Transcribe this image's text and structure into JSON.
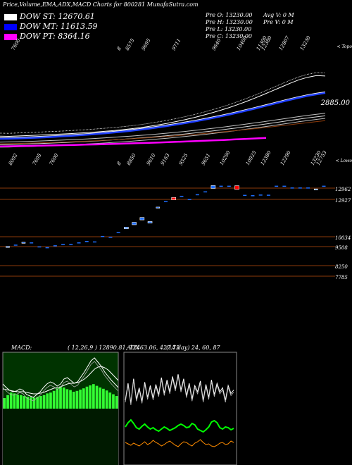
{
  "header": {
    "title": "Price,Volume,EMA,ADX,MACD Charts for 800281 MunafaSutra.com"
  },
  "legend": [
    {
      "label": "DOW ST: 12670.61",
      "color": "#ffffff"
    },
    {
      "label": "DOW MT: 11613.59",
      "color": "#0000ff"
    },
    {
      "label": "DOW PT: 8364.16",
      "color": "#ff00ff"
    }
  ],
  "ohlc_info": {
    "open": "Pre   O: 13230.00",
    "high": "Pre   H: 13230.00",
    "low": "Pre   L: 13230.00",
    "close": "Pre   C: 13230.00",
    "avg_vol": "Avg V: 0  M",
    "pre_vol": "Pre   V: 0  M"
  },
  "chart_data": [
    {
      "type": "line",
      "panel": "price-ema",
      "right_label": "2885.00",
      "corner_label": "< Topo",
      "top_labels": [
        "7600",
        "8",
        "8575",
        "9695",
        "9711",
        "9640",
        "10400",
        "11300",
        "12380",
        "12807",
        "13230"
      ],
      "series": [
        {
          "color": "#ffffff",
          "values": [
            2180,
            2178,
            2182,
            2186,
            2190,
            2195,
            2200,
            2204,
            2210,
            2216,
            2222,
            2230,
            2238,
            2246,
            2256,
            2268,
            2280,
            2296,
            2312,
            2330,
            2350,
            2372,
            2396,
            2422,
            2450,
            2480,
            2512,
            2548,
            2586,
            2626,
            2668,
            2712,
            2756,
            2800,
            2840,
            2870,
            2890,
            2885
          ]
        },
        {
          "color": "#1f3fff",
          "values": [
            2150,
            2152,
            2155,
            2159,
            2163,
            2168,
            2173,
            2179,
            2185,
            2192,
            2199,
            2207,
            2216,
            2225,
            2235,
            2246,
            2258,
            2271,
            2285,
            2300,
            2316,
            2333,
            2351,
            2370,
            2390,
            2411,
            2433,
            2456,
            2480,
            2505,
            2531,
            2557,
            2583,
            2608,
            2632,
            2654,
            2672,
            2688
          ]
        },
        {
          "color": "#c0c0c0",
          "values": [
            2110,
            2112,
            2115,
            2118,
            2121,
            2125,
            2129,
            2133,
            2138,
            2143,
            2148,
            2154,
            2160,
            2167,
            2174,
            2181,
            2189,
            2197,
            2206,
            2215,
            2225,
            2235,
            2246,
            2257,
            2269,
            2281,
            2294,
            2307,
            2321,
            2335,
            2349,
            2364,
            2379,
            2394,
            2409,
            2423,
            2436,
            2448
          ]
        },
        {
          "color": "#ff00ff",
          "values": [
            2060,
            2062,
            2064,
            2066,
            2069,
            2071,
            2074,
            2077,
            2080,
            2083,
            2087,
            2090,
            2094,
            2098,
            2102,
            2106,
            2111,
            2115,
            2120,
            2125,
            2130,
            2135,
            2141,
            2147,
            2153,
            2159
          ]
        },
        {
          "color": "#8b3a0a",
          "values": [
            2090,
            2092,
            2094,
            2097,
            2100,
            2103,
            2106,
            2110,
            2114,
            2118,
            2122,
            2127,
            2132,
            2137,
            2143,
            2149,
            2155,
            2162,
            2169,
            2176,
            2184,
            2192,
            2200,
            2209,
            2218,
            2227,
            2237,
            2247,
            2257,
            2268,
            2279,
            2290,
            2302,
            2314,
            2326,
            2338,
            2350,
            2362
          ]
        }
      ]
    },
    {
      "type": "candlestick",
      "panel": "price",
      "corner_label": "< Lowo",
      "top_labels": [
        "8002",
        "7605",
        "7600",
        "8",
        "8850",
        "9610",
        "9163",
        "9525",
        "9651",
        "10290",
        "10925",
        "12380",
        "12290",
        "13230",
        "12753"
      ],
      "levels": [
        "12962",
        "12927",
        "10034",
        "9508",
        "8250",
        "7785"
      ],
      "candles": [
        {
          "x": 1,
          "o": 9400,
          "c": 9450,
          "dir": "up"
        },
        {
          "x": 2,
          "o": 9560,
          "c": 9560,
          "dir": "flat"
        },
        {
          "x": 3,
          "o": 9690,
          "c": 9710,
          "dir": "up"
        },
        {
          "x": 4,
          "o": 9700,
          "c": 9700,
          "dir": "flat"
        },
        {
          "x": 5,
          "o": 9450,
          "c": 9450,
          "dir": "flat"
        },
        {
          "x": 6,
          "o": 9400,
          "c": 9400,
          "dir": "flat"
        },
        {
          "x": 7,
          "o": 9520,
          "c": 9520,
          "dir": "flat"
        },
        {
          "x": 8,
          "o": 9600,
          "c": 9600,
          "dir": "flat"
        },
        {
          "x": 9,
          "o": 9600,
          "c": 9600,
          "dir": "flat"
        },
        {
          "x": 10,
          "o": 9700,
          "c": 9700,
          "dir": "flat"
        },
        {
          "x": 11,
          "o": 9790,
          "c": 9790,
          "dir": "flat"
        },
        {
          "x": 12,
          "o": 9750,
          "c": 9760,
          "dir": "flat"
        },
        {
          "x": 13,
          "o": 10100,
          "c": 10100,
          "dir": "flat"
        },
        {
          "x": 14,
          "o": 10050,
          "c": 10050,
          "dir": "flat"
        },
        {
          "x": 15,
          "o": 10350,
          "c": 10350,
          "dir": "flat"
        },
        {
          "x": 16,
          "o": 10550,
          "c": 10650,
          "dir": "up"
        },
        {
          "x": 17,
          "o": 10800,
          "c": 10950,
          "dir": "up"
        },
        {
          "x": 18,
          "o": 11100,
          "c": 11250,
          "dir": "up"
        },
        {
          "x": 19,
          "o": 10900,
          "c": 11000,
          "dir": "up"
        },
        {
          "x": 20,
          "o": 11850,
          "c": 11900,
          "dir": "up"
        },
        {
          "x": 21,
          "o": 12280,
          "c": 12280,
          "dir": "flat"
        },
        {
          "x": 22,
          "o": 12500,
          "c": 12350,
          "dir": "down"
        },
        {
          "x": 23,
          "o": 12600,
          "c": 12600,
          "dir": "flat"
        },
        {
          "x": 24,
          "o": 12400,
          "c": 12400,
          "dir": "flat"
        },
        {
          "x": 25,
          "o": 12700,
          "c": 12700,
          "dir": "flat"
        },
        {
          "x": 26,
          "o": 12880,
          "c": 12880,
          "dir": "flat"
        },
        {
          "x": 27,
          "o": 13060,
          "c": 13240,
          "dir": "up"
        },
        {
          "x": 28,
          "o": 13230,
          "c": 13230,
          "dir": "flat"
        },
        {
          "x": 29,
          "o": 13230,
          "c": 13230,
          "dir": "flat"
        },
        {
          "x": 30,
          "o": 13230,
          "c": 13000,
          "dir": "down"
        },
        {
          "x": 31,
          "o": 12660,
          "c": 12660,
          "dir": "flat"
        },
        {
          "x": 32,
          "o": 12640,
          "c": 12640,
          "dir": "flat"
        },
        {
          "x": 33,
          "o": 12680,
          "c": 12680,
          "dir": "flat"
        },
        {
          "x": 34,
          "o": 12670,
          "c": 12670,
          "dir": "flat"
        },
        {
          "x": 35,
          "o": 13230,
          "c": 13230,
          "dir": "flat"
        },
        {
          "x": 36,
          "o": 13230,
          "c": 13230,
          "dir": "flat"
        },
        {
          "x": 37,
          "o": 13120,
          "c": 13120,
          "dir": "flat"
        },
        {
          "x": 38,
          "o": 13120,
          "c": 13120,
          "dir": "flat"
        },
        {
          "x": 39,
          "o": 13120,
          "c": 13120,
          "dir": "flat"
        },
        {
          "x": 40,
          "o": 12980,
          "c": 13030,
          "dir": "up"
        },
        {
          "x": 41,
          "o": 13230,
          "c": 13230,
          "dir": "flat"
        }
      ]
    },
    {
      "type": "macd",
      "panel": "macd",
      "label": "MACD:",
      "params": "( 12,26,9 ) 12890.81, 12463.06, 427.75",
      "histogram": [
        0.25,
        0.32,
        0.38,
        0.36,
        0.33,
        0.32,
        0.3,
        0.28,
        0.27,
        0.26,
        0.28,
        0.3,
        0.32,
        0.36,
        0.38,
        0.42,
        0.48,
        0.52,
        0.5,
        0.46,
        0.44,
        0.4,
        0.42,
        0.45,
        0.48,
        0.52,
        0.55,
        0.58,
        0.54,
        0.5,
        0.47,
        0.43,
        0.38,
        0.34,
        0.3
      ],
      "macd_line": [
        0.55,
        0.5,
        0.46,
        0.44,
        0.45,
        0.48,
        0.46,
        0.4,
        0.38,
        0.36,
        0.4,
        0.44,
        0.5,
        0.55,
        0.58,
        0.56,
        0.52,
        0.55,
        0.62,
        0.64,
        0.6,
        0.56,
        0.58,
        0.65,
        0.72,
        0.8,
        0.88,
        0.92,
        0.86,
        0.8,
        0.72,
        0.66,
        0.6,
        0.55,
        0.5
      ],
      "signal_line": [
        0.48,
        0.47,
        0.46,
        0.45,
        0.44,
        0.44,
        0.44,
        0.43,
        0.42,
        0.41,
        0.41,
        0.42,
        0.43,
        0.45,
        0.47,
        0.49,
        0.5,
        0.51,
        0.53,
        0.55,
        0.56,
        0.56,
        0.57,
        0.59,
        0.62,
        0.66,
        0.71,
        0.76,
        0.79,
        0.8,
        0.78,
        0.75,
        0.7,
        0.65,
        0.6
      ]
    },
    {
      "type": "adx",
      "panel": "adx",
      "label": "ADX",
      "params": "(14 day) 24, 60, 87",
      "adx_line": [
        0.4,
        0.7,
        0.35,
        0.78,
        0.42,
        0.62,
        0.38,
        0.72,
        0.45,
        0.66,
        0.44,
        0.68,
        0.5,
        0.8,
        0.52,
        0.76,
        0.55,
        0.82,
        0.6,
        0.86,
        0.58,
        0.78,
        0.48,
        0.7,
        0.42,
        0.66,
        0.55,
        0.74,
        0.4,
        0.68,
        0.45,
        0.76,
        0.5,
        0.7,
        0.55,
        0.62,
        0.4,
        0.66,
        0.52,
        0.58
      ],
      "plus_di": [
        0.34,
        0.4,
        0.44,
        0.39,
        0.33,
        0.31,
        0.35,
        0.38,
        0.34,
        0.31,
        0.33,
        0.3,
        0.28,
        0.31,
        0.34,
        0.32,
        0.29,
        0.31,
        0.33,
        0.36,
        0.38,
        0.36,
        0.33,
        0.34,
        0.39,
        0.37,
        0.31,
        0.29,
        0.27,
        0.3,
        0.34,
        0.41,
        0.43,
        0.4,
        0.33,
        0.31,
        0.34,
        0.33,
        0.3,
        0.32
      ],
      "minus_di": [
        0.12,
        0.1,
        0.08,
        0.11,
        0.09,
        0.07,
        0.1,
        0.13,
        0.09,
        0.11,
        0.15,
        0.12,
        0.1,
        0.07,
        0.09,
        0.12,
        0.14,
        0.11,
        0.08,
        0.06,
        0.1,
        0.13,
        0.12,
        0.09,
        0.07,
        0.11,
        0.13,
        0.16,
        0.12,
        0.09,
        0.1,
        0.07,
        0.06,
        0.08,
        0.11,
        0.12,
        0.09,
        0.1,
        0.14,
        0.12
      ]
    }
  ]
}
